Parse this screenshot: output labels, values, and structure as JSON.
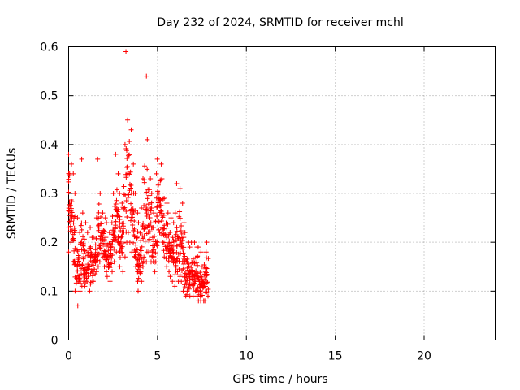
{
  "chart_data": {
    "type": "scatter",
    "title": "Day 232 of 2024, SRMTID for receiver mchl",
    "xlabel": "GPS time / hours",
    "ylabel": "SRMTID / TECUs",
    "xlim": [
      0,
      24
    ],
    "ylim": [
      0,
      0.6
    ],
    "xticks": [
      0,
      5,
      10,
      15,
      20
    ],
    "xtick_labels": [
      "0",
      "5",
      "10",
      "15",
      "20"
    ],
    "yticks": [
      0,
      0.1,
      0.2,
      0.3,
      0.4,
      0.5,
      0.6
    ],
    "ytick_labels": [
      "0",
      "0.1",
      "0.2",
      "0.3",
      "0.4",
      "0.5",
      "0.6"
    ],
    "grid": true,
    "marker": "+",
    "series_color": "#ff0000",
    "x_step_hours": 0.05,
    "series": [
      {
        "name": "SRMTID",
        "x_start": 0.0,
        "envelope": [
          [
            0.3,
            0.38,
            0.18
          ],
          [
            0.29,
            0.36,
            0.2
          ],
          [
            0.24,
            0.34,
            0.16
          ],
          [
            0.21,
            0.3,
            0.1
          ],
          [
            0.17,
            0.25,
            0.07
          ],
          [
            0.14,
            0.22,
            0.1
          ],
          [
            0.15,
            0.37,
            0.11
          ],
          [
            0.16,
            0.26,
            0.12
          ],
          [
            0.15,
            0.24,
            0.11
          ],
          [
            0.16,
            0.22,
            0.12
          ],
          [
            0.16,
            0.23,
            0.1
          ],
          [
            0.15,
            0.21,
            0.12
          ],
          [
            0.17,
            0.21,
            0.12
          ],
          [
            0.18,
            0.25,
            0.14
          ],
          [
            0.19,
            0.37,
            0.15
          ],
          [
            0.21,
            0.3,
            0.16
          ],
          [
            0.22,
            0.26,
            0.17
          ],
          [
            0.2,
            0.25,
            0.15
          ],
          [
            0.18,
            0.24,
            0.13
          ],
          [
            0.17,
            0.22,
            0.12
          ],
          [
            0.19,
            0.24,
            0.14
          ],
          [
            0.22,
            0.3,
            0.16
          ],
          [
            0.24,
            0.38,
            0.18
          ],
          [
            0.26,
            0.34,
            0.2
          ],
          [
            0.22,
            0.3,
            0.15
          ],
          [
            0.2,
            0.28,
            0.14
          ],
          [
            0.25,
            0.4,
            0.17
          ],
          [
            0.3,
            0.59,
            0.2
          ],
          [
            0.34,
            0.45,
            0.22
          ],
          [
            0.3,
            0.43,
            0.2
          ],
          [
            0.26,
            0.36,
            0.18
          ],
          [
            0.22,
            0.3,
            0.15
          ],
          [
            0.18,
            0.26,
            0.12
          ],
          [
            0.16,
            0.24,
            0.1
          ],
          [
            0.18,
            0.27,
            0.12
          ],
          [
            0.22,
            0.33,
            0.15
          ],
          [
            0.25,
            0.54,
            0.16
          ],
          [
            0.28,
            0.41,
            0.18
          ],
          [
            0.27,
            0.33,
            0.18
          ],
          [
            0.24,
            0.3,
            0.16
          ],
          [
            0.2,
            0.26,
            0.14
          ],
          [
            0.24,
            0.34,
            0.16
          ],
          [
            0.28,
            0.37,
            0.2
          ],
          [
            0.3,
            0.36,
            0.22
          ],
          [
            0.27,
            0.33,
            0.2
          ],
          [
            0.24,
            0.29,
            0.17
          ],
          [
            0.21,
            0.28,
            0.15
          ],
          [
            0.2,
            0.26,
            0.14
          ],
          [
            0.19,
            0.25,
            0.13
          ],
          [
            0.18,
            0.24,
            0.12
          ],
          [
            0.17,
            0.26,
            0.11
          ],
          [
            0.2,
            0.32,
            0.12
          ],
          [
            0.22,
            0.31,
            0.13
          ],
          [
            0.2,
            0.28,
            0.12
          ],
          [
            0.17,
            0.24,
            0.1
          ],
          [
            0.15,
            0.22,
            0.09
          ],
          [
            0.14,
            0.2,
            0.1
          ],
          [
            0.13,
            0.19,
            0.09
          ],
          [
            0.14,
            0.2,
            0.09
          ],
          [
            0.15,
            0.2,
            0.1
          ],
          [
            0.14,
            0.19,
            0.09
          ],
          [
            0.13,
            0.19,
            0.08
          ],
          [
            0.12,
            0.18,
            0.08
          ],
          [
            0.11,
            0.15,
            0.08
          ],
          [
            0.13,
            0.18,
            0.08
          ],
          [
            0.14,
            0.2,
            0.09
          ]
        ]
      }
    ]
  }
}
